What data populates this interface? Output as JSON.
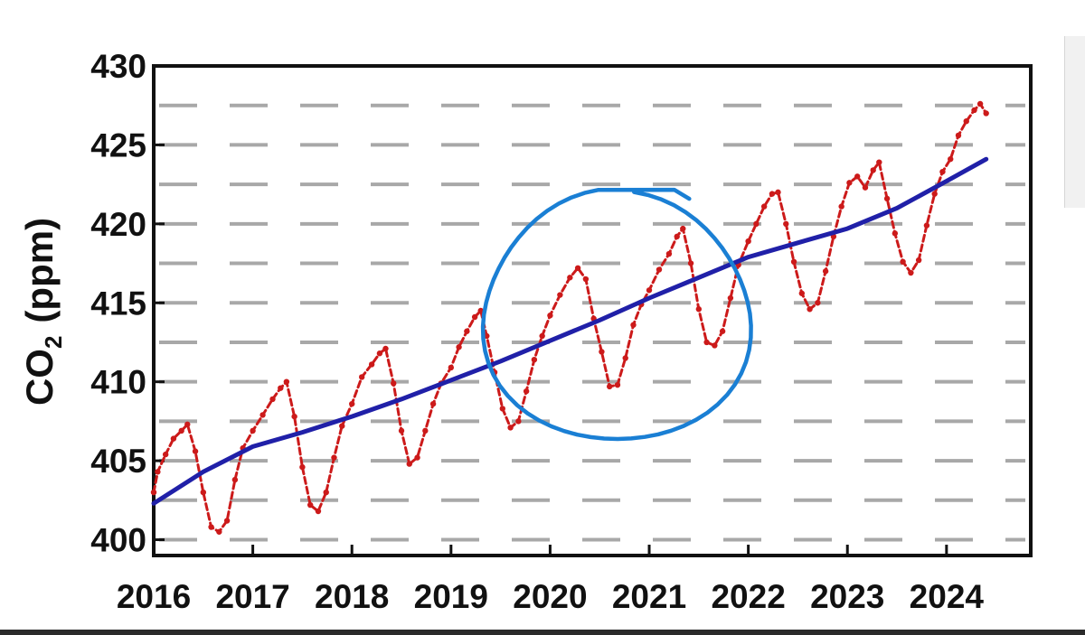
{
  "chart_data": {
    "type": "line",
    "title": "",
    "xlabel": "",
    "ylabel": "CO",
    "ylabel_subscript": "2",
    "ylabel_unit": "(ppm)",
    "xlim": [
      2016.0,
      2024.85
    ],
    "ylim": [
      399,
      430
    ],
    "x_ticks": [
      "2016",
      "2017",
      "2018",
      "2019",
      "2020",
      "2021",
      "2022",
      "2023",
      "2024"
    ],
    "x_tick_values": [
      2016,
      2017,
      2018,
      2019,
      2020,
      2021,
      2022,
      2023,
      2024
    ],
    "y_ticks": [
      "400",
      "405",
      "410",
      "415",
      "420",
      "425",
      "430"
    ],
    "y_tick_values": [
      400,
      405,
      410,
      415,
      420,
      425,
      430
    ],
    "grid": "dashed horizontal",
    "series": [
      {
        "color": "#cc1a1a",
        "style": "dotted-line-with-markers",
        "points": [
          [
            2016.0,
            403.0
          ],
          [
            2016.04,
            404.3
          ],
          [
            2016.12,
            405.4
          ],
          [
            2016.2,
            406.4
          ],
          [
            2016.28,
            406.9
          ],
          [
            2016.34,
            407.3
          ],
          [
            2016.42,
            405.6
          ],
          [
            2016.5,
            403.0
          ],
          [
            2016.58,
            400.8
          ],
          [
            2016.66,
            400.5
          ],
          [
            2016.74,
            401.2
          ],
          [
            2016.82,
            403.8
          ],
          [
            2016.9,
            405.8
          ],
          [
            2017.0,
            406.9
          ],
          [
            2017.1,
            407.9
          ],
          [
            2017.2,
            408.9
          ],
          [
            2017.28,
            409.6
          ],
          [
            2017.34,
            410.0
          ],
          [
            2017.42,
            407.8
          ],
          [
            2017.5,
            404.6
          ],
          [
            2017.58,
            402.2
          ],
          [
            2017.66,
            401.8
          ],
          [
            2017.74,
            403.0
          ],
          [
            2017.82,
            405.2
          ],
          [
            2017.9,
            407.2
          ],
          [
            2018.0,
            408.6
          ],
          [
            2018.1,
            410.3
          ],
          [
            2018.2,
            411.1
          ],
          [
            2018.28,
            411.8
          ],
          [
            2018.34,
            412.1
          ],
          [
            2018.42,
            409.9
          ],
          [
            2018.5,
            406.9
          ],
          [
            2018.58,
            404.8
          ],
          [
            2018.66,
            405.2
          ],
          [
            2018.74,
            406.9
          ],
          [
            2018.82,
            408.6
          ],
          [
            2018.9,
            409.9
          ],
          [
            2019.0,
            410.9
          ],
          [
            2019.08,
            412.2
          ],
          [
            2019.16,
            413.2
          ],
          [
            2019.24,
            414.1
          ],
          [
            2019.3,
            414.5
          ],
          [
            2019.36,
            412.9
          ],
          [
            2019.44,
            410.6
          ],
          [
            2019.52,
            408.3
          ],
          [
            2019.6,
            407.1
          ],
          [
            2019.68,
            407.5
          ],
          [
            2019.76,
            409.4
          ],
          [
            2019.84,
            411.4
          ],
          [
            2019.92,
            412.9
          ],
          [
            2020.0,
            414.2
          ],
          [
            2020.1,
            415.5
          ],
          [
            2020.2,
            416.6
          ],
          [
            2020.28,
            417.2
          ],
          [
            2020.36,
            416.5
          ],
          [
            2020.44,
            414.0
          ],
          [
            2020.52,
            411.9
          ],
          [
            2020.6,
            409.7
          ],
          [
            2020.68,
            409.8
          ],
          [
            2020.76,
            411.5
          ],
          [
            2020.84,
            413.6
          ],
          [
            2020.92,
            414.9
          ],
          [
            2021.0,
            415.8
          ],
          [
            2021.1,
            417.1
          ],
          [
            2021.2,
            418.1
          ],
          [
            2021.28,
            419.2
          ],
          [
            2021.34,
            419.7
          ],
          [
            2021.42,
            417.5
          ],
          [
            2021.5,
            414.6
          ],
          [
            2021.58,
            412.5
          ],
          [
            2021.66,
            412.3
          ],
          [
            2021.74,
            413.2
          ],
          [
            2021.82,
            415.3
          ],
          [
            2021.9,
            417.4
          ],
          [
            2022.0,
            418.9
          ],
          [
            2022.08,
            420.0
          ],
          [
            2022.16,
            421.1
          ],
          [
            2022.24,
            421.9
          ],
          [
            2022.3,
            422.0
          ],
          [
            2022.38,
            420.0
          ],
          [
            2022.46,
            417.6
          ],
          [
            2022.54,
            415.6
          ],
          [
            2022.62,
            414.6
          ],
          [
            2022.7,
            415.0
          ],
          [
            2022.78,
            417.0
          ],
          [
            2022.86,
            419.2
          ],
          [
            2022.94,
            421.1
          ],
          [
            2023.02,
            422.6
          ],
          [
            2023.1,
            423.0
          ],
          [
            2023.18,
            422.3
          ],
          [
            2023.26,
            423.4
          ],
          [
            2023.32,
            423.9
          ],
          [
            2023.4,
            421.6
          ],
          [
            2023.48,
            419.4
          ],
          [
            2023.56,
            417.6
          ],
          [
            2023.64,
            416.9
          ],
          [
            2023.72,
            417.7
          ],
          [
            2023.8,
            419.9
          ],
          [
            2023.88,
            421.9
          ],
          [
            2023.96,
            423.3
          ],
          [
            2024.04,
            424.1
          ],
          [
            2024.12,
            425.6
          ],
          [
            2024.2,
            426.5
          ],
          [
            2024.28,
            427.2
          ],
          [
            2024.34,
            427.6
          ],
          [
            2024.4,
            427.0
          ]
        ]
      },
      {
        "color": "#2020a8",
        "style": "solid-line",
        "points": [
          [
            2016.0,
            402.3
          ],
          [
            2016.5,
            404.3
          ],
          [
            2017.0,
            405.9
          ],
          [
            2017.5,
            406.8
          ],
          [
            2018.0,
            407.8
          ],
          [
            2018.5,
            408.9
          ],
          [
            2019.0,
            410.1
          ],
          [
            2019.5,
            411.3
          ],
          [
            2020.0,
            412.6
          ],
          [
            2020.5,
            413.9
          ],
          [
            2021.0,
            415.3
          ],
          [
            2021.5,
            416.6
          ],
          [
            2022.0,
            417.9
          ],
          [
            2022.5,
            418.8
          ],
          [
            2023.0,
            419.7
          ],
          [
            2023.5,
            421.0
          ],
          [
            2024.0,
            422.7
          ],
          [
            2024.4,
            424.1
          ]
        ]
      }
    ],
    "annotations": [
      {
        "type": "hand-drawn-ellipse",
        "color": "#1a7fd4",
        "x_range": [
          2019.3,
          2022.05
        ],
        "y_range": [
          406.3,
          421.7
        ]
      }
    ]
  }
}
